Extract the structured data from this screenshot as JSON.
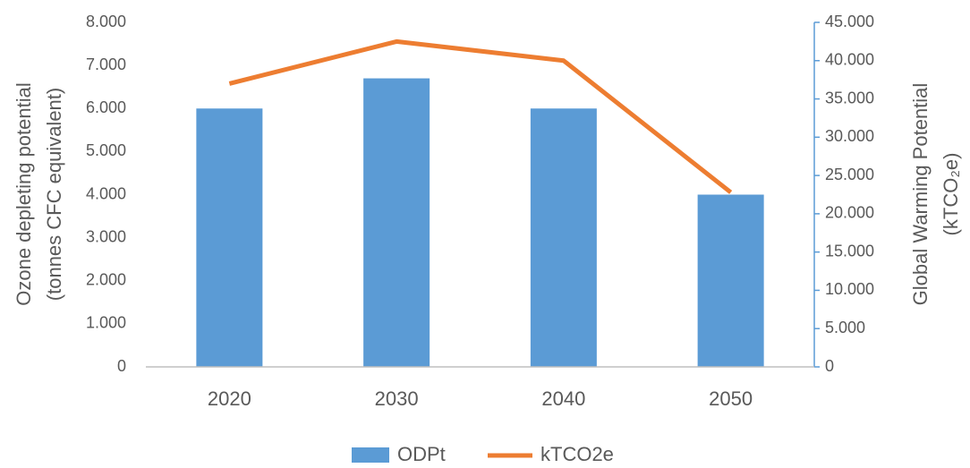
{
  "chart_data": {
    "type": "bar-line",
    "categories": [
      "2020",
      "2030",
      "2040",
      "2050"
    ],
    "series": [
      {
        "name": "ODPt",
        "type": "bar",
        "color": "#5b9bd5",
        "axis": "y",
        "values": [
          6,
          6.7,
          6,
          4
        ]
      },
      {
        "name": "kTCO2e",
        "type": "line",
        "color": "#ed7d31",
        "axis": "y2",
        "values": [
          37,
          42.5,
          40,
          22.8
        ]
      }
    ],
    "ylabel": [
      "Ozone depleting potential",
      "(tonnes CFC equivalent)"
    ],
    "y2label": [
      "Global Warming Potential",
      "(kTCO₂e)"
    ],
    "ylim": [
      0,
      8
    ],
    "yticks": [
      0,
      {
        "value": 1,
        "label": "1.000"
      },
      {
        "value": 2,
        "label": "2.000"
      },
      {
        "value": 3,
        "label": "3.000"
      },
      {
        "value": 4,
        "label": "4.000"
      },
      {
        "value": 5,
        "label": "5.000"
      },
      {
        "value": 6,
        "label": "6.000"
      },
      {
        "value": 7,
        "label": "7.000"
      },
      {
        "value": 8,
        "label": "8.000"
      }
    ],
    "y2lim": [
      0,
      45
    ],
    "y2ticks": [
      0,
      {
        "value": 5,
        "label": "5.000"
      },
      {
        "value": 10,
        "label": "10.000"
      },
      {
        "value": 15,
        "label": "15.000"
      },
      {
        "value": 20,
        "label": "20.000"
      },
      {
        "value": 25,
        "label": "25.000"
      },
      {
        "value": 30,
        "label": "30.000"
      },
      {
        "value": 35,
        "label": "35.000"
      },
      {
        "value": 40,
        "label": "40.000"
      },
      {
        "value": 45,
        "label": "45.000"
      }
    ],
    "legend": "bottom"
  }
}
